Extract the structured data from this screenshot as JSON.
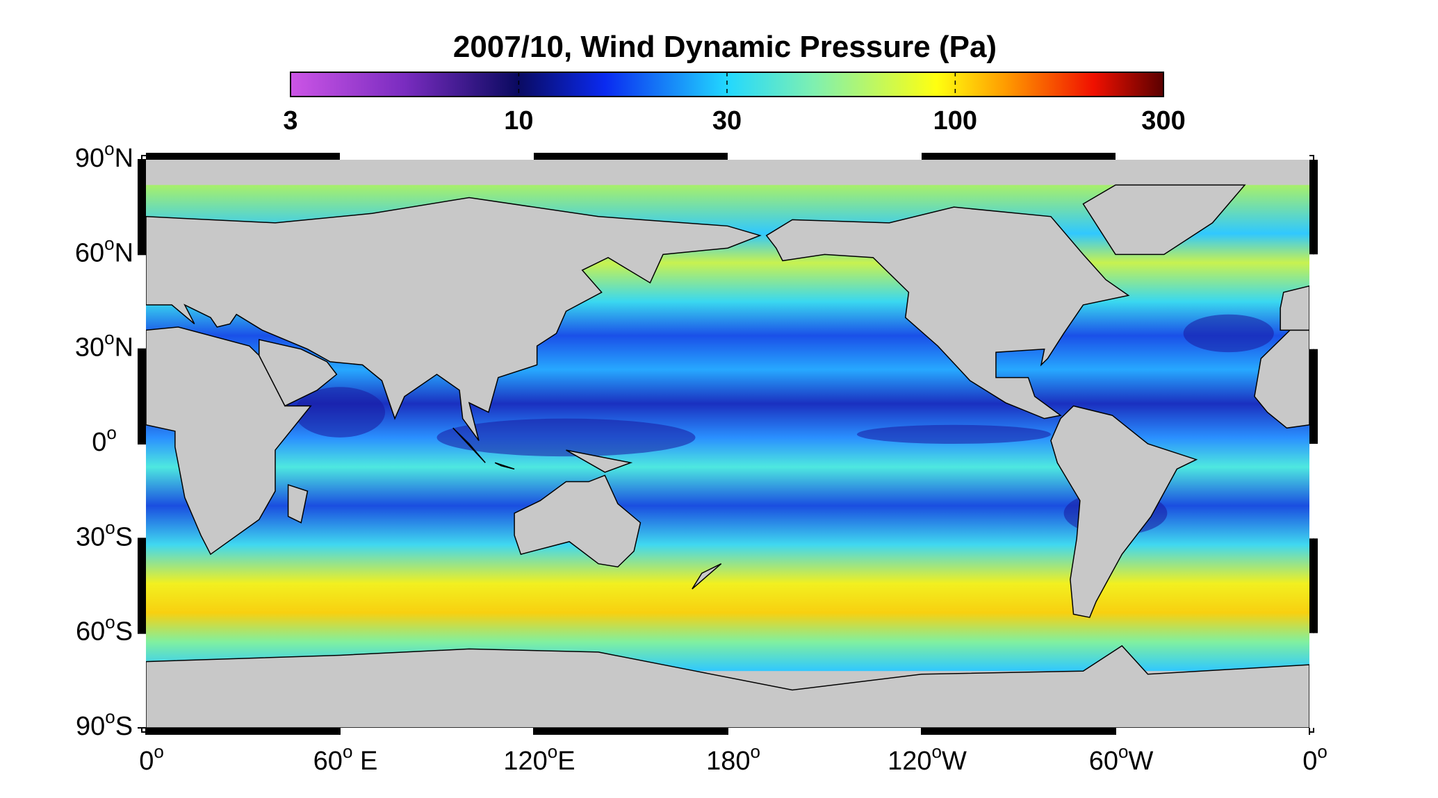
{
  "map": {
    "title": "2007/10, Wind Dynamic Pressure (Pa)",
    "degree_symbol": "o",
    "colorbar": {
      "scale": "log",
      "lim": [
        3,
        300
      ],
      "ticks": [
        3,
        10,
        30,
        100,
        300
      ]
    },
    "lat_ticks": [
      {
        "value": 90,
        "label": "90",
        "hemisphere": "N"
      },
      {
        "value": 60,
        "label": "60",
        "hemisphere": "N"
      },
      {
        "value": 30,
        "label": "30",
        "hemisphere": "N"
      },
      {
        "value": 0,
        "label": "0"
      },
      {
        "value": -30,
        "label": "30",
        "hemisphere": "S"
      },
      {
        "value": -60,
        "label": "60",
        "hemisphere": "S"
      },
      {
        "value": -90,
        "label": "90",
        "hemisphere": "S"
      }
    ],
    "lon_ticks": [
      {
        "value": 0,
        "label": "0"
      },
      {
        "value": 60,
        "label": "60",
        "hemisphere": " E"
      },
      {
        "value": 120,
        "label": "120",
        "hemisphere": "E"
      },
      {
        "value": 180,
        "label": "180"
      },
      {
        "value": 240,
        "label": "120",
        "hemisphere": "W"
      },
      {
        "value": 300,
        "label": "60",
        "hemisphere": "W"
      },
      {
        "value": 360,
        "label": "0"
      }
    ]
  }
}
